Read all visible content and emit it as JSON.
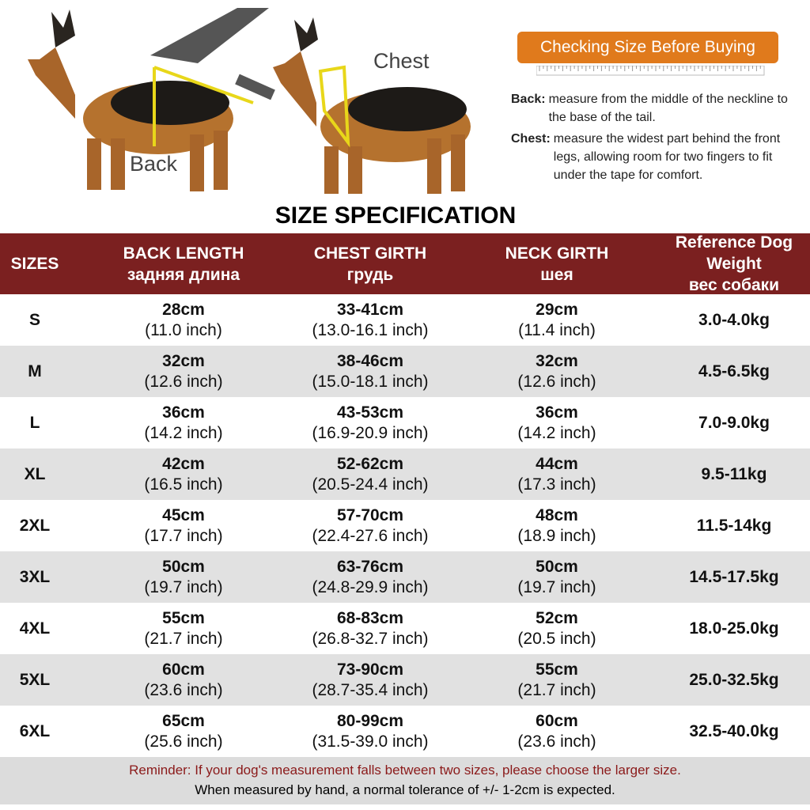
{
  "illustration": {
    "back_label": "Back",
    "chest_label": "Chest"
  },
  "banner": "Checking Size Before Buying",
  "instructions": [
    {
      "term": "Back:",
      "text": "measure from the middle of the neckline to the base of the tail."
    },
    {
      "term": "Chest:",
      "text": "measure the widest part behind the front legs, allowing room for two fingers to fit under the tape for comfort."
    }
  ],
  "title": "SIZE SPECIFICATION",
  "table": {
    "headers": [
      [
        "SIZES"
      ],
      [
        "BACK LENGTH",
        "задняя длина"
      ],
      [
        "CHEST GIRTH",
        "грудь"
      ],
      [
        "NECK GIRTH",
        "шея"
      ],
      [
        "Reference Dog Weight",
        "вес собаки"
      ]
    ],
    "rows": [
      [
        "S",
        [
          "28cm",
          "(11.0 inch)"
        ],
        [
          "33-41cm",
          "(13.0-16.1 inch)"
        ],
        [
          "29cm",
          "(11.4 inch)"
        ],
        "3.0-4.0kg"
      ],
      [
        "M",
        [
          "32cm",
          "(12.6 inch)"
        ],
        [
          "38-46cm",
          "(15.0-18.1 inch)"
        ],
        [
          "32cm",
          "(12.6 inch)"
        ],
        "4.5-6.5kg"
      ],
      [
        "L",
        [
          "36cm",
          "(14.2 inch)"
        ],
        [
          "43-53cm",
          "(16.9-20.9 inch)"
        ],
        [
          "36cm",
          "(14.2 inch)"
        ],
        "7.0-9.0kg"
      ],
      [
        "XL",
        [
          "42cm",
          "(16.5 inch)"
        ],
        [
          "52-62cm",
          "(20.5-24.4 inch)"
        ],
        [
          "44cm",
          "(17.3 inch)"
        ],
        "9.5-11kg"
      ],
      [
        "2XL",
        [
          "45cm",
          "(17.7 inch)"
        ],
        [
          "57-70cm",
          "(22.4-27.6 inch)"
        ],
        [
          "48cm",
          "(18.9 inch)"
        ],
        "11.5-14kg"
      ],
      [
        "3XL",
        [
          "50cm",
          "(19.7 inch)"
        ],
        [
          "63-76cm",
          "(24.8-29.9 inch)"
        ],
        [
          "50cm",
          "(19.7 inch)"
        ],
        "14.5-17.5kg"
      ],
      [
        "4XL",
        [
          "55cm",
          "(21.7 inch)"
        ],
        [
          "68-83cm",
          "(26.8-32.7 inch)"
        ],
        [
          "52cm",
          "(20.5 inch)"
        ],
        "18.0-25.0kg"
      ],
      [
        "5XL",
        [
          "60cm",
          "(23.6 inch)"
        ],
        [
          "73-90cm",
          "(28.7-35.4 inch)"
        ],
        [
          "55cm",
          "(21.7 inch)"
        ],
        "25.0-32.5kg"
      ],
      [
        "6XL",
        [
          "65cm",
          "(25.6 inch)"
        ],
        [
          "80-99cm",
          "(31.5-39.0 inch)"
        ],
        [
          "60cm",
          "(23.6 inch)"
        ],
        "32.5-40.0kg"
      ]
    ]
  },
  "reminder": [
    "Reminder: If your dog's measurement falls between two sizes, please choose the larger size.",
    "When measured by hand, a normal tolerance of +/- 1-2cm is expected."
  ]
}
